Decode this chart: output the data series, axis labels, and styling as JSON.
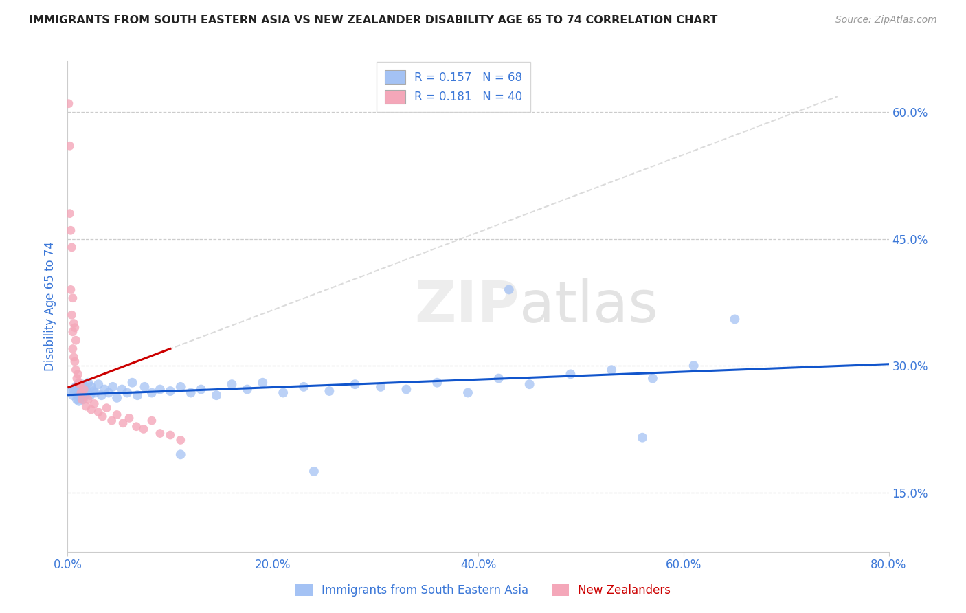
{
  "title": "IMMIGRANTS FROM SOUTH EASTERN ASIA VS NEW ZEALANDER DISABILITY AGE 65 TO 74 CORRELATION CHART",
  "source": "Source: ZipAtlas.com",
  "ylabel": "Disability Age 65 to 74",
  "legend_label1": "Immigrants from South Eastern Asia",
  "legend_label2": "New Zealanders",
  "R1": 0.157,
  "N1": 68,
  "R2": 0.181,
  "N2": 40,
  "xlim": [
    0.0,
    0.8
  ],
  "ylim": [
    0.08,
    0.66
  ],
  "yticks": [
    0.15,
    0.3,
    0.45,
    0.6
  ],
  "xticks": [
    0.0,
    0.2,
    0.4,
    0.6,
    0.8
  ],
  "color_blue": "#a4c2f4",
  "color_pink": "#f4a7b9",
  "color_blue_line": "#1155cc",
  "color_pink_line": "#cc0000",
  "color_blue_dark": "#1155cc",
  "color_pink_dark": "#cc0000",
  "color_axis": "#3c78d8",
  "color_grid": "#cccccc",
  "blue_x": [
    0.003,
    0.005,
    0.006,
    0.007,
    0.008,
    0.009,
    0.01,
    0.01,
    0.011,
    0.011,
    0.012,
    0.012,
    0.013,
    0.013,
    0.014,
    0.014,
    0.015,
    0.015,
    0.016,
    0.017,
    0.017,
    0.018,
    0.019,
    0.02,
    0.022,
    0.023,
    0.025,
    0.027,
    0.03,
    0.033,
    0.036,
    0.04,
    0.044,
    0.048,
    0.053,
    0.058,
    0.063,
    0.068,
    0.075,
    0.082,
    0.09,
    0.1,
    0.11,
    0.12,
    0.13,
    0.145,
    0.16,
    0.175,
    0.19,
    0.21,
    0.23,
    0.255,
    0.28,
    0.305,
    0.33,
    0.36,
    0.39,
    0.42,
    0.45,
    0.49,
    0.53,
    0.57,
    0.61,
    0.65,
    0.56,
    0.43,
    0.24,
    0.11
  ],
  "blue_y": [
    0.27,
    0.265,
    0.272,
    0.268,
    0.275,
    0.26,
    0.278,
    0.265,
    0.27,
    0.258,
    0.268,
    0.275,
    0.262,
    0.272,
    0.265,
    0.278,
    0.26,
    0.27,
    0.268,
    0.275,
    0.265,
    0.272,
    0.268,
    0.28,
    0.265,
    0.275,
    0.27,
    0.268,
    0.278,
    0.265,
    0.272,
    0.268,
    0.275,
    0.262,
    0.272,
    0.268,
    0.28,
    0.265,
    0.275,
    0.268,
    0.272,
    0.27,
    0.275,
    0.268,
    0.272,
    0.265,
    0.278,
    0.272,
    0.28,
    0.268,
    0.275,
    0.27,
    0.278,
    0.275,
    0.272,
    0.28,
    0.268,
    0.285,
    0.278,
    0.29,
    0.295,
    0.285,
    0.3,
    0.355,
    0.215,
    0.39,
    0.175,
    0.195
  ],
  "pink_x": [
    0.001,
    0.002,
    0.002,
    0.003,
    0.003,
    0.004,
    0.004,
    0.005,
    0.005,
    0.005,
    0.006,
    0.006,
    0.007,
    0.007,
    0.008,
    0.008,
    0.009,
    0.01,
    0.011,
    0.012,
    0.013,
    0.014,
    0.016,
    0.018,
    0.02,
    0.023,
    0.026,
    0.03,
    0.034,
    0.038,
    0.043,
    0.048,
    0.054,
    0.06,
    0.067,
    0.074,
    0.082,
    0.09,
    0.1,
    0.11
  ],
  "pink_y": [
    0.61,
    0.56,
    0.48,
    0.46,
    0.39,
    0.44,
    0.36,
    0.34,
    0.38,
    0.32,
    0.35,
    0.31,
    0.345,
    0.305,
    0.33,
    0.295,
    0.285,
    0.29,
    0.28,
    0.278,
    0.268,
    0.26,
    0.272,
    0.252,
    0.26,
    0.248,
    0.255,
    0.245,
    0.24,
    0.25,
    0.235,
    0.242,
    0.232,
    0.238,
    0.228,
    0.225,
    0.235,
    0.22,
    0.218,
    0.212
  ],
  "dot_size_blue": 100,
  "dot_size_pink": 85
}
